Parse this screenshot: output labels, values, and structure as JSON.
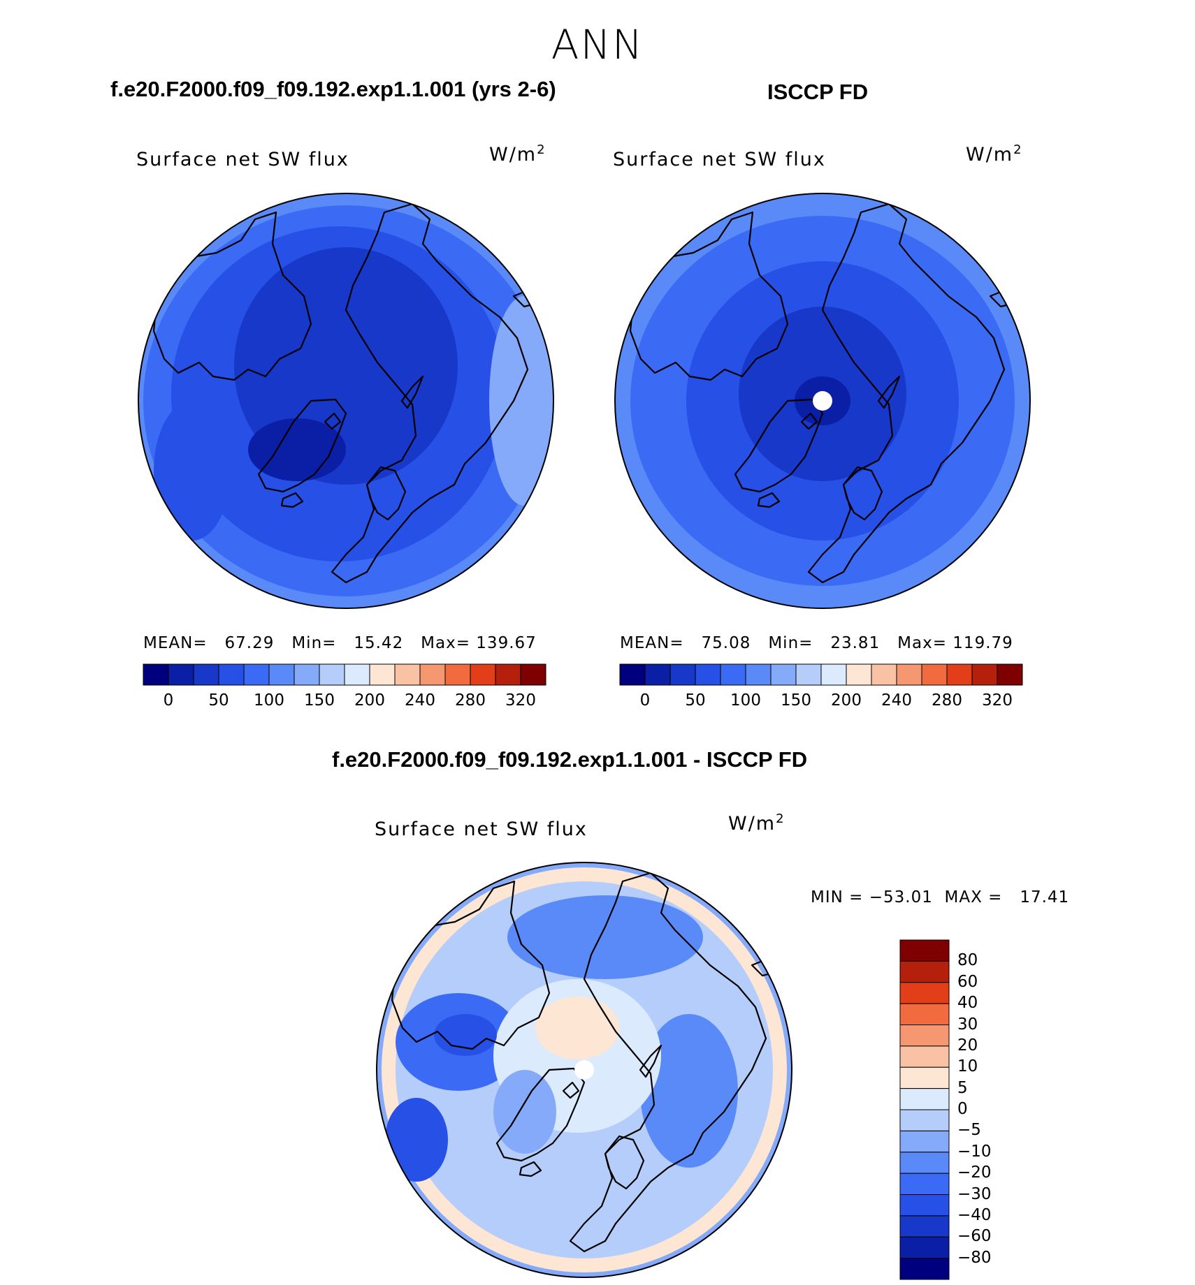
{
  "page_title": "ANN",
  "panels": {
    "model": {
      "title": "f.e20.F2000.f09_f09.192.exp1.1.001 (yrs 2-6)",
      "variable": "Surface net SW flux",
      "units": "W/m",
      "units_sup": "2",
      "stats": {
        "mean_label": "MEAN=",
        "mean": "67.29",
        "min_label": "Min=",
        "min": "15.42",
        "max_label": "Max=",
        "max": "139.67"
      }
    },
    "obs": {
      "title": "ISCCP FD",
      "variable": "Surface net SW flux",
      "units": "W/m",
      "units_sup": "2",
      "stats": {
        "mean_label": "MEAN=",
        "mean": "75.08",
        "min_label": "Min=",
        "min": "23.81",
        "max_label": "Max=",
        "max": "119.79"
      }
    },
    "diff": {
      "title": "f.e20.F2000.f09_f09.192.exp1.1.001 - ISCCP FD",
      "variable": "Surface net SW flux",
      "units": "W/m",
      "units_sup": "2",
      "stats": {
        "min_label": "MIN =",
        "min": "−53.01",
        "max_label": "MAX =",
        "max": "17.41"
      }
    }
  },
  "chart_data": [
    {
      "type": "heatmap",
      "projection": "north-polar-stereographic",
      "title": "f.e20.F2000.f09_f09.192.exp1.1.001 (yrs 2-6)",
      "variable": "Surface net SW flux",
      "units": "W/m2",
      "mean": 67.29,
      "min": 15.42,
      "max": 139.67,
      "colorbar": {
        "orientation": "horizontal",
        "tick_labels": [
          "0",
          "50",
          "100",
          "150",
          "200",
          "240",
          "280",
          "320"
        ],
        "levels": [
          0,
          25,
          50,
          75,
          100,
          125,
          150,
          175,
          200,
          220,
          240,
          260,
          280,
          300,
          320
        ],
        "colors": [
          "#00007f",
          "#0a1fa5",
          "#1738c9",
          "#2750e6",
          "#3b6bf5",
          "#5a8af8",
          "#86aafa",
          "#b5cdfb",
          "#dceafd",
          "#fde6d3",
          "#f9c2a4",
          "#f59872",
          "#f26b3f",
          "#e33e1a",
          "#b4200b",
          "#7f0000"
        ]
      }
    },
    {
      "type": "heatmap",
      "projection": "north-polar-stereographic",
      "title": "ISCCP FD",
      "variable": "Surface net SW flux",
      "units": "W/m2",
      "mean": 75.08,
      "min": 23.81,
      "max": 119.79,
      "colorbar": {
        "orientation": "horizontal",
        "tick_labels": [
          "0",
          "50",
          "100",
          "150",
          "200",
          "240",
          "280",
          "320"
        ],
        "levels": [
          0,
          25,
          50,
          75,
          100,
          125,
          150,
          175,
          200,
          220,
          240,
          260,
          280,
          300,
          320
        ],
        "colors": [
          "#00007f",
          "#0a1fa5",
          "#1738c9",
          "#2750e6",
          "#3b6bf5",
          "#5a8af8",
          "#86aafa",
          "#b5cdfb",
          "#dceafd",
          "#fde6d3",
          "#f9c2a4",
          "#f59872",
          "#f26b3f",
          "#e33e1a",
          "#b4200b",
          "#7f0000"
        ]
      }
    },
    {
      "type": "heatmap",
      "projection": "north-polar-stereographic",
      "title": "f.e20.F2000.f09_f09.192.exp1.1.001 - ISCCP FD",
      "variable": "Surface net SW flux",
      "units": "W/m2",
      "min": -53.01,
      "max": 17.41,
      "colorbar": {
        "orientation": "vertical",
        "tick_labels": [
          "80",
          "60",
          "40",
          "30",
          "20",
          "10",
          "5",
          "0",
          "−5",
          "−10",
          "−20",
          "−30",
          "−40",
          "−60",
          "−80"
        ],
        "colors_top_to_bottom": [
          "#7f0000",
          "#b4200b",
          "#e33e1a",
          "#f26b3f",
          "#f59872",
          "#f9c2a4",
          "#fde6d3",
          "#dceafd",
          "#b5cdfb",
          "#86aafa",
          "#5a8af8",
          "#3b6bf5",
          "#2750e6",
          "#1738c9",
          "#0a1fa5",
          "#00007f"
        ]
      }
    }
  ]
}
